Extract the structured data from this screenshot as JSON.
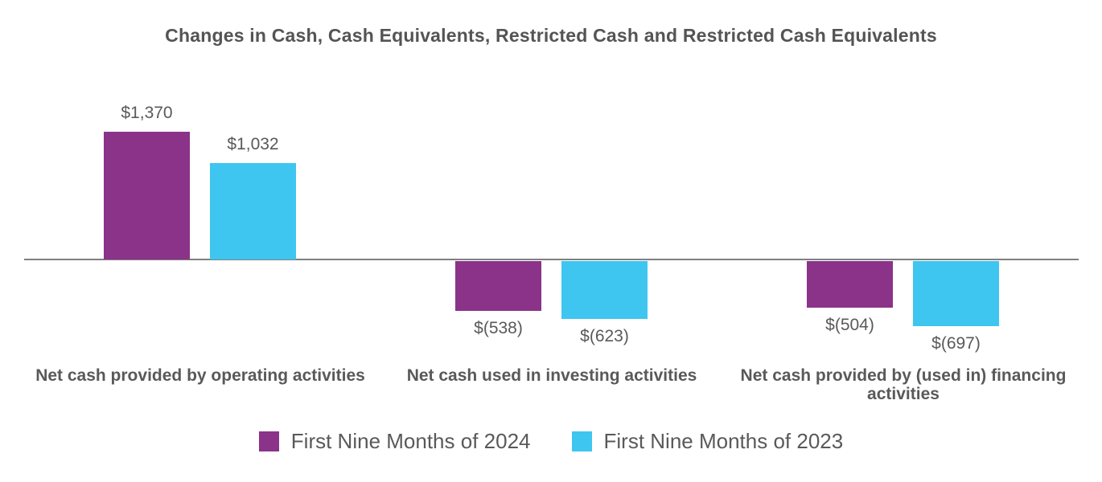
{
  "chart_data": {
    "type": "bar",
    "title": "Changes in Cash, Cash Equivalents, Restricted Cash and Restricted Cash Equivalents",
    "categories": [
      "Net cash provided by operating activities",
      "Net cash used in investing activities",
      "Net cash provided by (used in) financing activities"
    ],
    "series": [
      {
        "name": "First Nine Months of 2024",
        "color": "#8A3389",
        "values": [
          1370,
          -538,
          -504
        ],
        "data_labels": [
          "$1,370",
          "$(538)",
          "$(504)"
        ]
      },
      {
        "name": "First Nine Months of 2023",
        "color": "#3EC6F0",
        "values": [
          1032,
          -623,
          -697
        ],
        "data_labels": [
          "$1,032",
          "$(623)",
          "$(697)"
        ]
      }
    ],
    "layout_hints": {
      "gridlines": false,
      "value_axis_visible": false,
      "baseline_visible": true,
      "legend_position": "bottom-center",
      "data_labels_position": "outside-end"
    }
  }
}
